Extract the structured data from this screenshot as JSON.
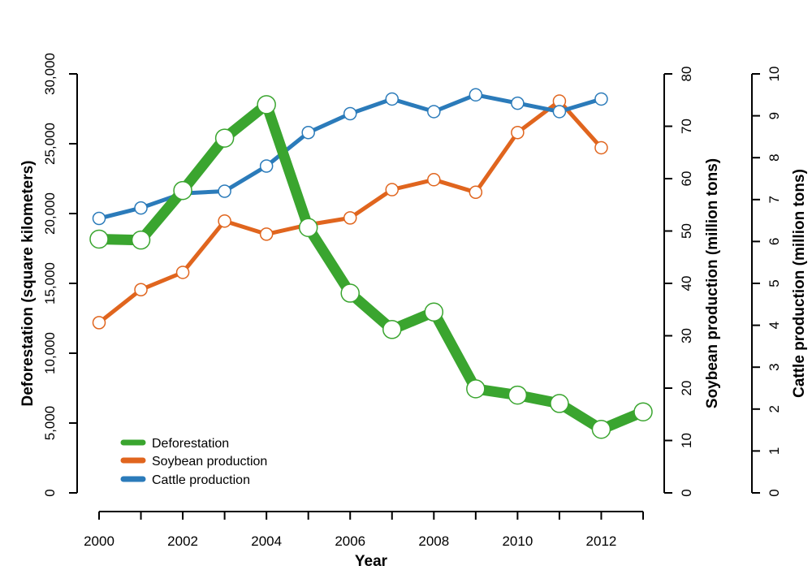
{
  "chart_data": {
    "type": "line",
    "x_title": "Year",
    "x": [
      2000,
      2001,
      2002,
      2003,
      2004,
      2005,
      2006,
      2007,
      2008,
      2009,
      2010,
      2011,
      2012,
      2013
    ],
    "x_ticks": [
      2000,
      2001,
      2002,
      2003,
      2004,
      2005,
      2006,
      2007,
      2008,
      2009,
      2010,
      2011,
      2012,
      2013
    ],
    "x_tick_labels": [
      "2000",
      "2002",
      "2004",
      "2006",
      "2008",
      "2010",
      "2012"
    ],
    "x_tick_label_values": [
      2000,
      2002,
      2004,
      2006,
      2008,
      2010,
      2012
    ],
    "axes": [
      {
        "id": "deforestation",
        "side": "left",
        "title": "Deforestation (square kilometers)",
        "ylim": [
          0,
          30000
        ],
        "ticks": [
          0,
          5000,
          10000,
          15000,
          20000,
          25000,
          30000
        ],
        "tick_labels": [
          "0",
          "5,000",
          "10,000",
          "15,000",
          "20,000",
          "25,000",
          "30,000"
        ]
      },
      {
        "id": "soybean",
        "side": "right",
        "title": "Soybean production (million tons)",
        "ylim": [
          0,
          80
        ],
        "ticks": [
          0,
          10,
          20,
          30,
          40,
          50,
          60,
          70,
          80
        ],
        "tick_labels": [
          "0",
          "10",
          "20",
          "30",
          "40",
          "50",
          "60",
          "70",
          "80"
        ]
      },
      {
        "id": "cattle",
        "side": "right",
        "title": "Cattle production (million tons)",
        "ylim": [
          0,
          10
        ],
        "ticks": [
          0,
          1,
          2,
          3,
          4,
          5,
          6,
          7,
          8,
          9,
          10
        ],
        "tick_labels": [
          "0",
          "1",
          "2",
          "3",
          "4",
          "5",
          "6",
          "7",
          "8",
          "9",
          "10"
        ]
      }
    ],
    "series": [
      {
        "name": "Deforestation",
        "axis": "deforestation",
        "color": "#3aa52f",
        "values": [
          18170,
          18100,
          21650,
          25400,
          27800,
          19000,
          14300,
          11700,
          12950,
          7450,
          7000,
          6400,
          4550,
          5800
        ]
      },
      {
        "name": "Soybean production",
        "axis": "soybean",
        "color": "#e0651e",
        "values": [
          32.5,
          38.8,
          42.1,
          51.9,
          49.4,
          51.2,
          52.5,
          57.9,
          59.8,
          57.4,
          68.8,
          74.8,
          65.9,
          null
        ]
      },
      {
        "name": "Cattle production",
        "axis": "cattle",
        "color": "#2b7bba",
        "values": [
          6.55,
          6.8,
          7.15,
          7.2,
          7.8,
          8.6,
          9.05,
          9.4,
          9.1,
          9.5,
          9.3,
          9.1,
          9.4,
          null
        ]
      }
    ],
    "legend": {
      "position": "bottom-left",
      "entries": [
        "Deforestation",
        "Soybean production",
        "Cattle production"
      ]
    },
    "grid": false
  }
}
